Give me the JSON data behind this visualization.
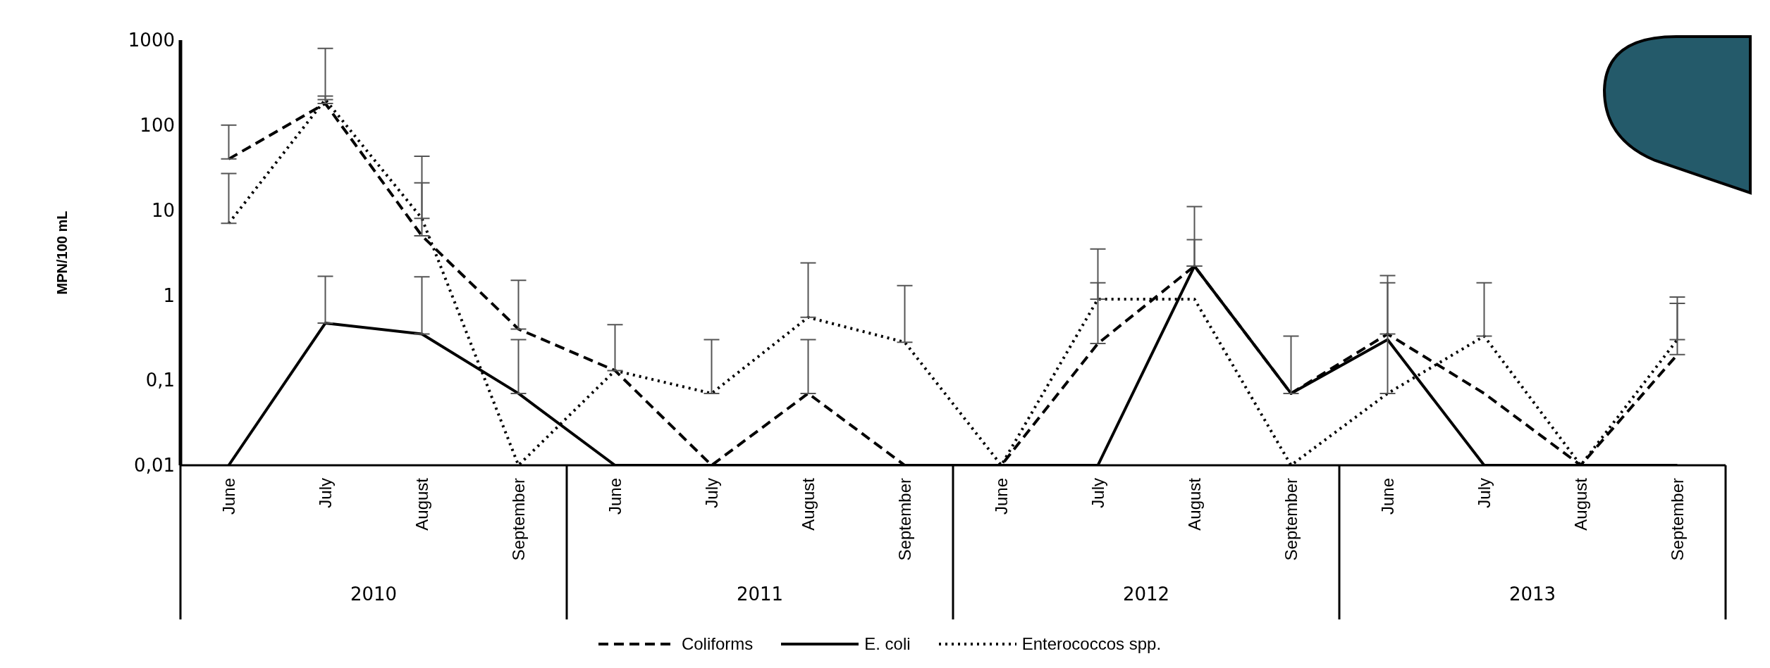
{
  "chart_data": {
    "type": "line",
    "ylabel": "MPN/100 mL",
    "categories": [
      "June",
      "July",
      "August",
      "September",
      "June",
      "July",
      "August",
      "September",
      "June",
      "July",
      "August",
      "September",
      "June",
      "July",
      "August",
      "September"
    ],
    "annotations": [
      "2010",
      "2011",
      "2012",
      "2013"
    ],
    "series": [
      {
        "name": "Coliforms",
        "color": "#000000",
        "line_style": "dashed",
        "values": [
          40,
          180,
          5,
          0.4,
          0.13,
          0.01,
          0.07,
          0.01,
          0.01,
          0.27,
          2.2,
          0.07,
          0.35,
          0.07,
          0.01,
          0.2
        ],
        "errors": [
          [
            40,
            100
          ],
          [
            180,
            800
          ],
          [
            5,
            43
          ],
          [
            0.4,
            1.5
          ],
          [
            0.13,
            0.45
          ],
          null,
          [
            0.07,
            0.3
          ],
          null,
          null,
          [
            0.27,
            1.4
          ],
          [
            2.2,
            11
          ],
          [
            0.07,
            0.33
          ],
          [
            0.35,
            1.7
          ],
          null,
          null,
          [
            0.2,
            0.8
          ]
        ]
      },
      {
        "name": "E. coli",
        "color": "#000000",
        "line_style": "solid",
        "values": [
          0.01,
          0.47,
          0.35,
          0.07,
          0.01,
          0.01,
          0.01,
          0.01,
          0.01,
          0.01,
          2.2,
          0.07,
          0.3,
          0.01,
          0.01,
          0.01
        ],
        "errors": [
          null,
          [
            0.47,
            1.67
          ],
          [
            0.35,
            1.65
          ],
          [
            0.07,
            0.3
          ],
          null,
          null,
          null,
          null,
          null,
          null,
          [
            2.2,
            4.5
          ],
          null,
          null,
          null,
          null,
          null
        ]
      },
      {
        "name": "Enterococcos spp.",
        "color": "#000000",
        "line_style": "dotted",
        "values": [
          7,
          200,
          8,
          0.01,
          0.13,
          0.07,
          0.55,
          0.28,
          0.01,
          0.9,
          0.9,
          0.01,
          0.07,
          0.33,
          0.01,
          0.3
        ],
        "errors": [
          [
            7,
            27
          ],
          [
            200,
            220
          ],
          [
            8,
            21
          ],
          null,
          null,
          [
            0.07,
            0.3
          ],
          [
            0.55,
            2.4
          ],
          [
            0.28,
            1.3
          ],
          null,
          [
            0.9,
            3.5
          ],
          null,
          null,
          [
            0.07,
            1.4
          ],
          [
            0.33,
            1.4
          ],
          null,
          [
            0.3,
            0.95
          ]
        ]
      }
    ],
    "log": true,
    "ylim": [
      0.01,
      1000
    ],
    "yticks": [
      {
        "value": 0.01,
        "label": "0,01"
      },
      {
        "value": 0.1,
        "label": "0,1"
      },
      1,
      10,
      100,
      1000
    ],
    "grid": false,
    "legend": "bottom"
  }
}
